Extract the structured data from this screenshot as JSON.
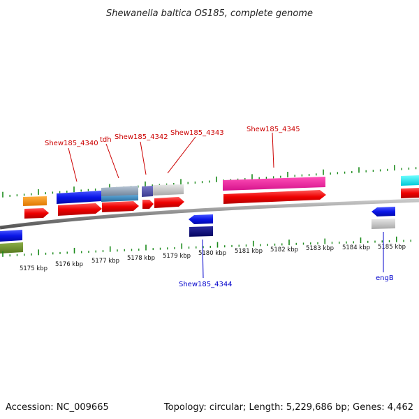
{
  "title": "Shewanella baltica OS185, complete genome",
  "footer": {
    "accession": "Accession: NC_009665",
    "summary": "Topology: circular; Length: 5,229,686 bp; Genes: 4,462"
  },
  "axis": {
    "tick_labels": [
      "5175 kbp",
      "5176 kbp",
      "5177 kbp",
      "5178 kbp",
      "5179 kbp",
      "5180 kbp",
      "5181 kbp",
      "5182 kbp",
      "5183 kbp",
      "5184 kbp",
      "5185 kbp"
    ]
  },
  "gene_labels": {
    "shew4340": "Shew185_4340",
    "tdh": "tdh",
    "shew4342": "Shew185_4342",
    "shew4343": "Shew185_4343",
    "shew4345": "Shew185_4345",
    "shew4344": "Shew185_4344",
    "engB": "engB"
  },
  "colors": {
    "forward_cds": "#ee0000",
    "reverse_cds": "#0a16e8",
    "label_forward": "#cc0000",
    "label_reverse": "#0000cc",
    "tick": "#1a8a1a",
    "backbone": "#8a8a8a"
  }
}
